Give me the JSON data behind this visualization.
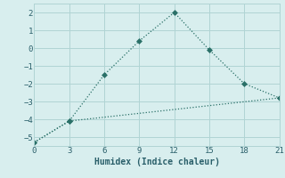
{
  "line1_x": [
    0,
    3,
    6,
    9,
    12,
    15,
    18,
    21
  ],
  "line1_y": [
    -5.3,
    -4.1,
    -1.5,
    0.4,
    2.0,
    -0.1,
    -2.0,
    -2.8
  ],
  "line2_x": [
    0,
    3,
    21
  ],
  "line2_y": [
    -5.3,
    -4.1,
    -2.8
  ],
  "line_color": "#2a7068",
  "xlabel": "Humidex (Indice chaleur)",
  "xlim": [
    0,
    21
  ],
  "ylim": [
    -5.5,
    2.5
  ],
  "xticks": [
    0,
    3,
    6,
    9,
    12,
    15,
    18,
    21
  ],
  "yticks": [
    -5,
    -4,
    -3,
    -2,
    -1,
    0,
    1,
    2
  ],
  "bg_color": "#d8eeee",
  "grid_color": "#b0d4d4",
  "font_color": "#2a5f6a"
}
